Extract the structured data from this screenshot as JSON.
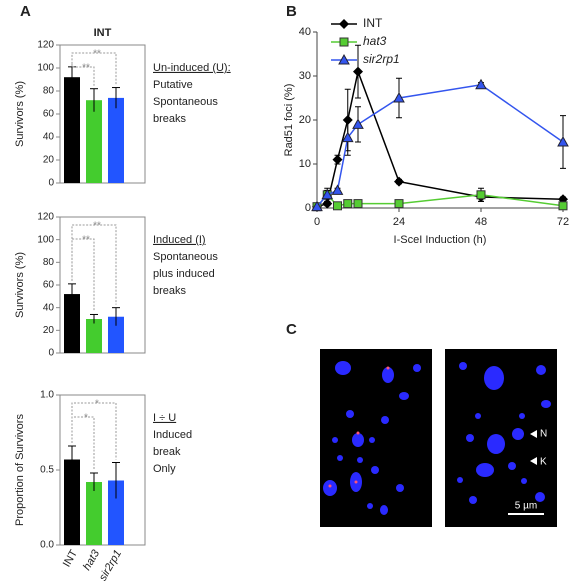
{
  "panels": [
    "A",
    "B",
    "C"
  ],
  "chart_data": [
    {
      "type": "bar",
      "title": "INT",
      "ylabel": "Survivors (%)",
      "categories": [
        "INT",
        "hat3",
        "sir2rp1"
      ],
      "colors": [
        "#000000",
        "#44cc2e",
        "#2255ff"
      ],
      "values": [
        92,
        72,
        74
      ],
      "errors": [
        9,
        10,
        9
      ],
      "ylim": [
        0,
        120
      ],
      "yticks": [
        0,
        20,
        40,
        60,
        80,
        100,
        120
      ],
      "significance": [
        "**",
        "**"
      ],
      "notes": [
        "Un-induced (U):",
        "Putative",
        "Spontaneous",
        "breaks"
      ]
    },
    {
      "type": "bar",
      "ylabel": "Survivors (%)",
      "categories": [
        "INT",
        "hat3",
        "sir2rp1"
      ],
      "colors": [
        "#000000",
        "#44cc2e",
        "#2255ff"
      ],
      "values": [
        52,
        30,
        32
      ],
      "errors": [
        9,
        4,
        8
      ],
      "ylim": [
        0,
        120
      ],
      "yticks": [
        0,
        20,
        40,
        60,
        80,
        100,
        120
      ],
      "significance": [
        "**",
        "**"
      ],
      "notes": [
        "Induced (I)",
        "Spontaneous",
        "plus induced",
        "breaks"
      ]
    },
    {
      "type": "bar",
      "ylabel": "Proportion of Survivors",
      "categories": [
        "INT",
        "hat3",
        "sir2rp1"
      ],
      "colors": [
        "#000000",
        "#44cc2e",
        "#2255ff"
      ],
      "values": [
        0.57,
        0.42,
        0.43
      ],
      "errors": [
        0.09,
        0.06,
        0.12
      ],
      "ylim": [
        0,
        1
      ],
      "yticks": [
        {
          "value": 0,
          "label": "0.0"
        },
        {
          "value": 0.5,
          "label": "0.5"
        },
        {
          "value": 1,
          "label": "1.0"
        }
      ],
      "significance": [
        "*",
        "*"
      ],
      "notes": [
        "I ÷ U",
        "Induced",
        "break",
        "Only"
      ]
    },
    {
      "type": "line",
      "ylabel": "Rad51 foci (%)",
      "xlabel": "I-SceI Induction (h)",
      "xlim": [
        0,
        72
      ],
      "xticks": [
        0,
        24,
        48,
        72
      ],
      "ylim": [
        0,
        40
      ],
      "yticks": [
        0,
        10,
        20,
        30,
        40
      ],
      "legend": "upper left",
      "series": [
        {
          "name": "INT",
          "color": "#000000",
          "marker": "diamond",
          "x": [
            0,
            3,
            6,
            9,
            12,
            24,
            48,
            72
          ],
          "values": [
            0.3,
            1,
            11,
            20,
            31,
            6,
            2.5,
            2
          ],
          "errors": [
            0,
            0.5,
            1,
            7,
            6,
            0.5,
            1,
            0.5
          ]
        },
        {
          "name": "hat3",
          "color": "#55cc33",
          "marker": "square",
          "x": [
            0,
            3,
            6,
            9,
            12,
            24,
            48,
            72
          ],
          "values": [
            0.3,
            3,
            0.5,
            1,
            1,
            1,
            3,
            0.5
          ],
          "errors": [
            0.5,
            1.5,
            0.5,
            0.5,
            0.5,
            0.3,
            1.5,
            0.5
          ]
        },
        {
          "name": "sir2rp1",
          "color": "#3355ee",
          "marker": "triangle",
          "x": [
            0,
            3,
            6,
            9,
            12,
            24,
            48,
            72
          ],
          "values": [
            0.3,
            3,
            4,
            16,
            19,
            25,
            28,
            15
          ],
          "errors": [
            0,
            1,
            0.5,
            4,
            4,
            4.5,
            0.5,
            6
          ]
        }
      ]
    }
  ],
  "micrograph": {
    "labels": [
      "N",
      "K"
    ],
    "scale_bar": "5 µm"
  }
}
